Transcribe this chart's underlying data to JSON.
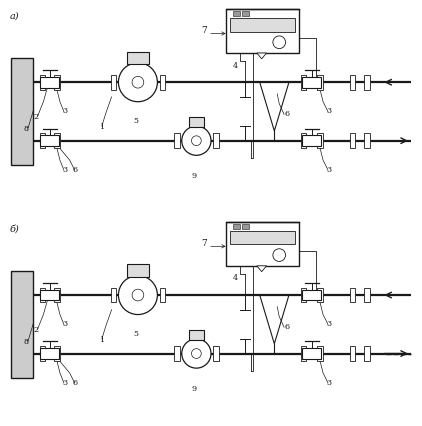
{
  "bg_color": "#ffffff",
  "line_color": "#1a1a1a",
  "label_a": "а)",
  "label_b": "б)",
  "figsize": [
    4.22,
    4.26
  ],
  "dpi": 100,
  "pipe_lw": 1.6,
  "thin_lw": 0.7,
  "med_lw": 1.0,
  "wall_color": "#cccccc",
  "component_fill": "#ffffff",
  "gray_fill": "#aaaaaa"
}
